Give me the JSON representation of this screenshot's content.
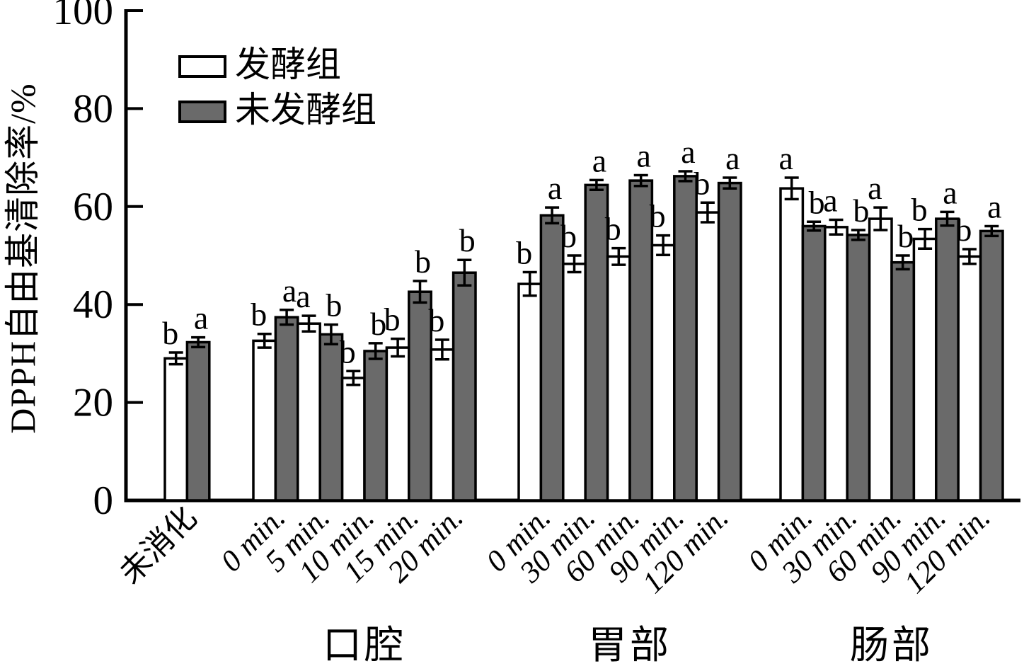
{
  "figure": {
    "y_axis_title": "DPPH自由基清除率/%",
    "legend": {
      "items": [
        {
          "label": "发酵组",
          "swatch": "#ffffff"
        },
        {
          "label": "未发酵组",
          "swatch": "#6a6a6a"
        }
      ]
    }
  },
  "chart_data": {
    "type": "bar",
    "title": "",
    "xlabel": "",
    "ylabel": "DPPH自由基清除率/%",
    "ylim": [
      0,
      100
    ],
    "yticks": [
      0,
      20,
      40,
      60,
      80,
      100
    ],
    "grid": false,
    "legend_position": "top-left-inside",
    "error_bars": true,
    "series_meta": [
      {
        "name": "发酵组",
        "fill": "#ffffff",
        "stroke": "#000000"
      },
      {
        "name": "未发酵组",
        "fill": "#6a6a6a",
        "stroke": "#000000"
      }
    ],
    "groups": [
      {
        "label": "",
        "categories": [
          "未消化"
        ],
        "fermented": [
          {
            "value": 29.0,
            "err": 1.2,
            "sig": "b"
          }
        ],
        "unfermented": [
          {
            "value": 32.3,
            "err": 1.0,
            "sig": "a"
          }
        ]
      },
      {
        "label": "口腔",
        "categories": [
          "0 min.",
          "5 min.",
          "10 min.",
          "15 min.",
          "20 min."
        ],
        "fermented": [
          {
            "value": 32.6,
            "err": 1.4,
            "sig": "b"
          },
          {
            "value": 36.1,
            "err": 1.6,
            "sig": "a"
          },
          {
            "value": 25.0,
            "err": 1.4,
            "sig": "b"
          },
          {
            "value": 31.2,
            "err": 1.8,
            "sig": "b"
          },
          {
            "value": 30.8,
            "err": 2.0,
            "sig": "b"
          }
        ],
        "unfermented": [
          {
            "value": 37.4,
            "err": 1.5,
            "sig": "a"
          },
          {
            "value": 33.9,
            "err": 2.0,
            "sig": "b"
          },
          {
            "value": 30.5,
            "err": 1.6,
            "sig": "b"
          },
          {
            "value": 42.6,
            "err": 2.2,
            "sig": "b"
          },
          {
            "value": 46.5,
            "err": 2.6,
            "sig": "b"
          }
        ]
      },
      {
        "label": "胃部",
        "categories": [
          "0 min.",
          "30 min.",
          "60 min.",
          "90 min.",
          "120 min."
        ],
        "fermented": [
          {
            "value": 44.2,
            "err": 2.4,
            "sig": "b"
          },
          {
            "value": 48.3,
            "err": 1.7,
            "sig": "b"
          },
          {
            "value": 49.8,
            "err": 1.7,
            "sig": "b"
          },
          {
            "value": 52.1,
            "err": 2.0,
            "sig": "b"
          },
          {
            "value": 58.8,
            "err": 2.0,
            "sig": "b"
          }
        ],
        "unfermented": [
          {
            "value": 58.2,
            "err": 1.6,
            "sig": "a"
          },
          {
            "value": 64.4,
            "err": 1.0,
            "sig": "a"
          },
          {
            "value": 65.3,
            "err": 1.1,
            "sig": "a"
          },
          {
            "value": 66.2,
            "err": 1.0,
            "sig": "a"
          },
          {
            "value": 64.8,
            "err": 1.1,
            "sig": "a"
          }
        ]
      },
      {
        "label": "肠部",
        "categories": [
          "0 min.",
          "30 min.",
          "60 min.",
          "90 min.",
          "120 min."
        ],
        "fermented": [
          {
            "value": 63.7,
            "err": 2.2,
            "sig": "a"
          },
          {
            "value": 55.8,
            "err": 1.5,
            "sig": "a"
          },
          {
            "value": 57.5,
            "err": 2.3,
            "sig": "a"
          },
          {
            "value": 53.4,
            "err": 2.0,
            "sig": "b"
          },
          {
            "value": 49.8,
            "err": 1.5,
            "sig": "b"
          }
        ],
        "unfermented": [
          {
            "value": 56.0,
            "err": 0.9,
            "sig": "b"
          },
          {
            "value": 54.2,
            "err": 1.0,
            "sig": "b"
          },
          {
            "value": 48.6,
            "err": 1.4,
            "sig": "b"
          },
          {
            "value": 57.5,
            "err": 1.4,
            "sig": "a"
          },
          {
            "value": 55.0,
            "err": 1.0,
            "sig": "a"
          }
        ]
      }
    ]
  }
}
